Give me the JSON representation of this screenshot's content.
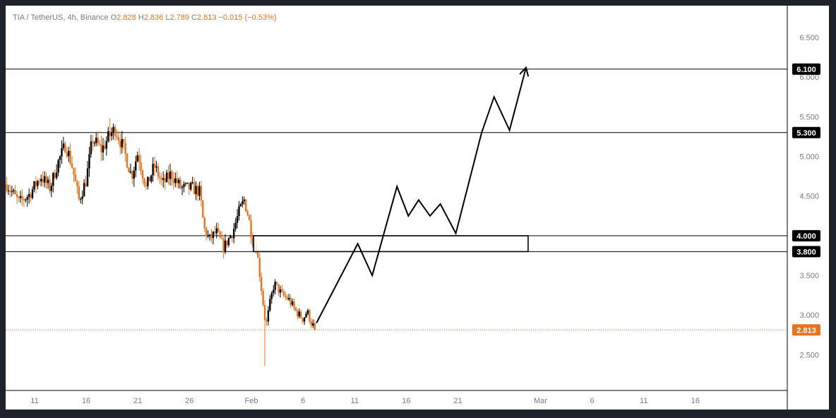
{
  "header": {
    "symbol": "TIA / TetherUS, 4h, Binance",
    "open_label": "O",
    "open": "2.828",
    "high_label": "H",
    "high": "2.836",
    "low_label": "L",
    "low": "2.789",
    "close_label": "C",
    "close": "2.813",
    "change": "−0.015 (−0.53%)"
  },
  "colors": {
    "up": "#000000",
    "down": "#e8741f",
    "price_line": "#e8741f",
    "levels": "#000000",
    "projection": "#000000"
  },
  "chart_data": {
    "type": "candlestick",
    "symbol": "TIA / TetherUS",
    "interval": "4h",
    "exchange": "Binance",
    "y_axis": {
      "ticks": [
        2.5,
        3.0,
        3.5,
        4.0,
        4.5,
        5.0,
        5.5,
        6.0,
        6.5
      ],
      "tick_labels": [
        "2.500",
        "3.000",
        "3.500",
        "4.000",
        "4.500",
        "5.000",
        "5.500",
        "6.000",
        "6.500"
      ],
      "range": [
        2.05,
        6.9
      ]
    },
    "x_axis": {
      "ticks": [
        11,
        16,
        21,
        26,
        32,
        37,
        42,
        47,
        52,
        60,
        65,
        70,
        75
      ],
      "tick_labels": [
        "11",
        "16",
        "21",
        "26",
        "Feb",
        "6",
        "11",
        "16",
        "21",
        "Mar",
        "6",
        "11",
        "16"
      ],
      "range": [
        8.2,
        83.9
      ]
    },
    "last_price": 2.813,
    "last_price_label": "2.813",
    "price_line_at": 2.813,
    "levels": [
      {
        "value": 6.1,
        "label": "6.100"
      },
      {
        "value": 5.3,
        "label": "5.300"
      },
      {
        "value": 4.0,
        "label": "4.000"
      },
      {
        "value": 3.8,
        "label": "3.800"
      }
    ],
    "zone": {
      "x_start": 32.2,
      "x_end": 58.8,
      "low": 3.8,
      "high": 4.0
    },
    "candle_anchors": [
      {
        "x": 8.3,
        "p": 4.65
      },
      {
        "x": 9.5,
        "p": 4.42
      },
      {
        "x": 10.5,
        "p": 4.52
      },
      {
        "x": 11.6,
        "p": 4.75
      },
      {
        "x": 12.5,
        "p": 4.6
      },
      {
        "x": 13.2,
        "p": 4.9
      },
      {
        "x": 14.0,
        "p": 5.15
      },
      {
        "x": 14.6,
        "p": 4.9
      },
      {
        "x": 15.3,
        "p": 4.45
      },
      {
        "x": 16.0,
        "p": 4.7
      },
      {
        "x": 16.6,
        "p": 5.22
      },
      {
        "x": 17.5,
        "p": 5.08
      },
      {
        "x": 18.2,
        "p": 5.25
      },
      {
        "x": 18.8,
        "p": 5.35
      },
      {
        "x": 19.6,
        "p": 5.1
      },
      {
        "x": 20.4,
        "p": 4.75
      },
      {
        "x": 21.0,
        "p": 5.05
      },
      {
        "x": 21.8,
        "p": 4.6
      },
      {
        "x": 22.6,
        "p": 4.88
      },
      {
        "x": 23.4,
        "p": 4.65
      },
      {
        "x": 24.2,
        "p": 4.78
      },
      {
        "x": 25.2,
        "p": 4.6
      },
      {
        "x": 26.3,
        "p": 4.6
      },
      {
        "x": 27.0,
        "p": 4.55
      },
      {
        "x": 27.4,
        "p": 4.1
      },
      {
        "x": 27.9,
        "p": 3.95
      },
      {
        "x": 28.6,
        "p": 4.05
      },
      {
        "x": 29.3,
        "p": 3.85
      },
      {
        "x": 30.2,
        "p": 4.05
      },
      {
        "x": 30.8,
        "p": 4.3
      },
      {
        "x": 31.3,
        "p": 4.45
      },
      {
        "x": 31.7,
        "p": 4.25
      },
      {
        "x": 32.1,
        "p": 3.95
      },
      {
        "x": 32.5,
        "p": 3.85
      },
      {
        "x": 33.0,
        "p": 3.3
      },
      {
        "x": 33.4,
        "p": 2.85
      },
      {
        "x": 33.8,
        "p": 3.15
      },
      {
        "x": 34.2,
        "p": 3.4
      },
      {
        "x": 35.0,
        "p": 3.25
      },
      {
        "x": 35.6,
        "p": 3.2
      },
      {
        "x": 36.3,
        "p": 3.05
      },
      {
        "x": 37.0,
        "p": 2.95
      },
      {
        "x": 37.4,
        "p": 3.05
      },
      {
        "x": 37.8,
        "p": 2.9
      },
      {
        "x": 38.3,
        "p": 2.813
      }
    ],
    "candle_range": {
      "x_start": 8.3,
      "x_end": 38.3,
      "step": 0.16667
    },
    "projection_path": [
      {
        "x": 38.3,
        "y": 2.9
      },
      {
        "x": 42.3,
        "y": 3.9
      },
      {
        "x": 43.7,
        "y": 3.5
      },
      {
        "x": 46.1,
        "y": 4.62
      },
      {
        "x": 47.2,
        "y": 4.25
      },
      {
        "x": 48.2,
        "y": 4.45
      },
      {
        "x": 49.3,
        "y": 4.25
      },
      {
        "x": 50.3,
        "y": 4.4
      },
      {
        "x": 51.8,
        "y": 4.03
      },
      {
        "x": 54.3,
        "y": 5.3
      },
      {
        "x": 55.5,
        "y": 5.75
      },
      {
        "x": 57.0,
        "y": 5.33
      },
      {
        "x": 58.6,
        "y": 6.12
      }
    ]
  }
}
